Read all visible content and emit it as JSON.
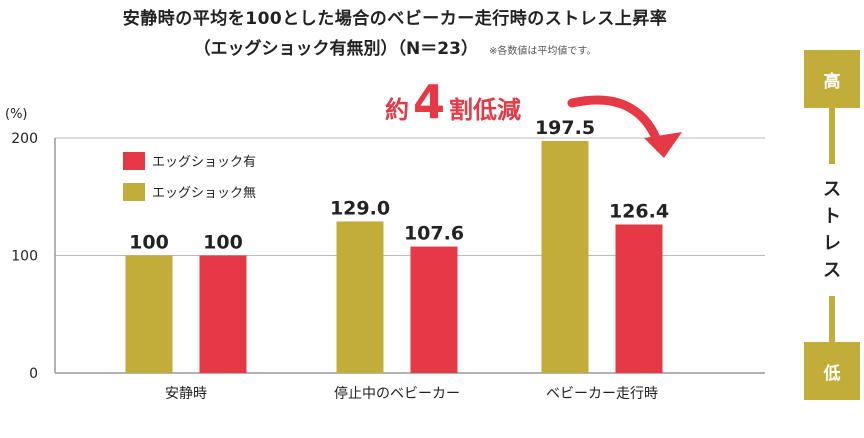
{
  "title": "安静時の平均を100とした場合のベビーカー走行時のストレス上昇率",
  "subtitle": "（エッグショック有無別）（N＝23）",
  "note": "※各数値は平均値です。",
  "chart_data": {
    "type": "bar",
    "categories": [
      "安静時",
      "停止中のベビーカー",
      "ベビーカー走行時"
    ],
    "series": [
      {
        "name": "エッグショック無",
        "color": "#c3ad3a",
        "values": [
          100,
          129.0,
          197.5
        ],
        "labels": [
          "100",
          "129.0",
          "197.5"
        ]
      },
      {
        "name": "エッグショック有",
        "color": "#e63946",
        "values": [
          100,
          107.6,
          126.4
        ],
        "labels": [
          "100",
          "107.6",
          "126.4"
        ]
      }
    ],
    "legend_order": [
      "エッグショック有",
      "エッグショック無"
    ],
    "ylabel": "(%)",
    "ylim": [
      0,
      200
    ],
    "yticks": [
      0,
      100,
      200
    ],
    "grid": true,
    "legend_position": "top-left",
    "callout": {
      "prefix": "約",
      "number": "4",
      "suffix": "割低減"
    }
  },
  "stress_scale": {
    "high": "高",
    "label": "ストレス",
    "low": "低"
  },
  "colors": {
    "gold": "#c3ad3a",
    "red": "#e63946",
    "grid": "#bbbbbb"
  }
}
